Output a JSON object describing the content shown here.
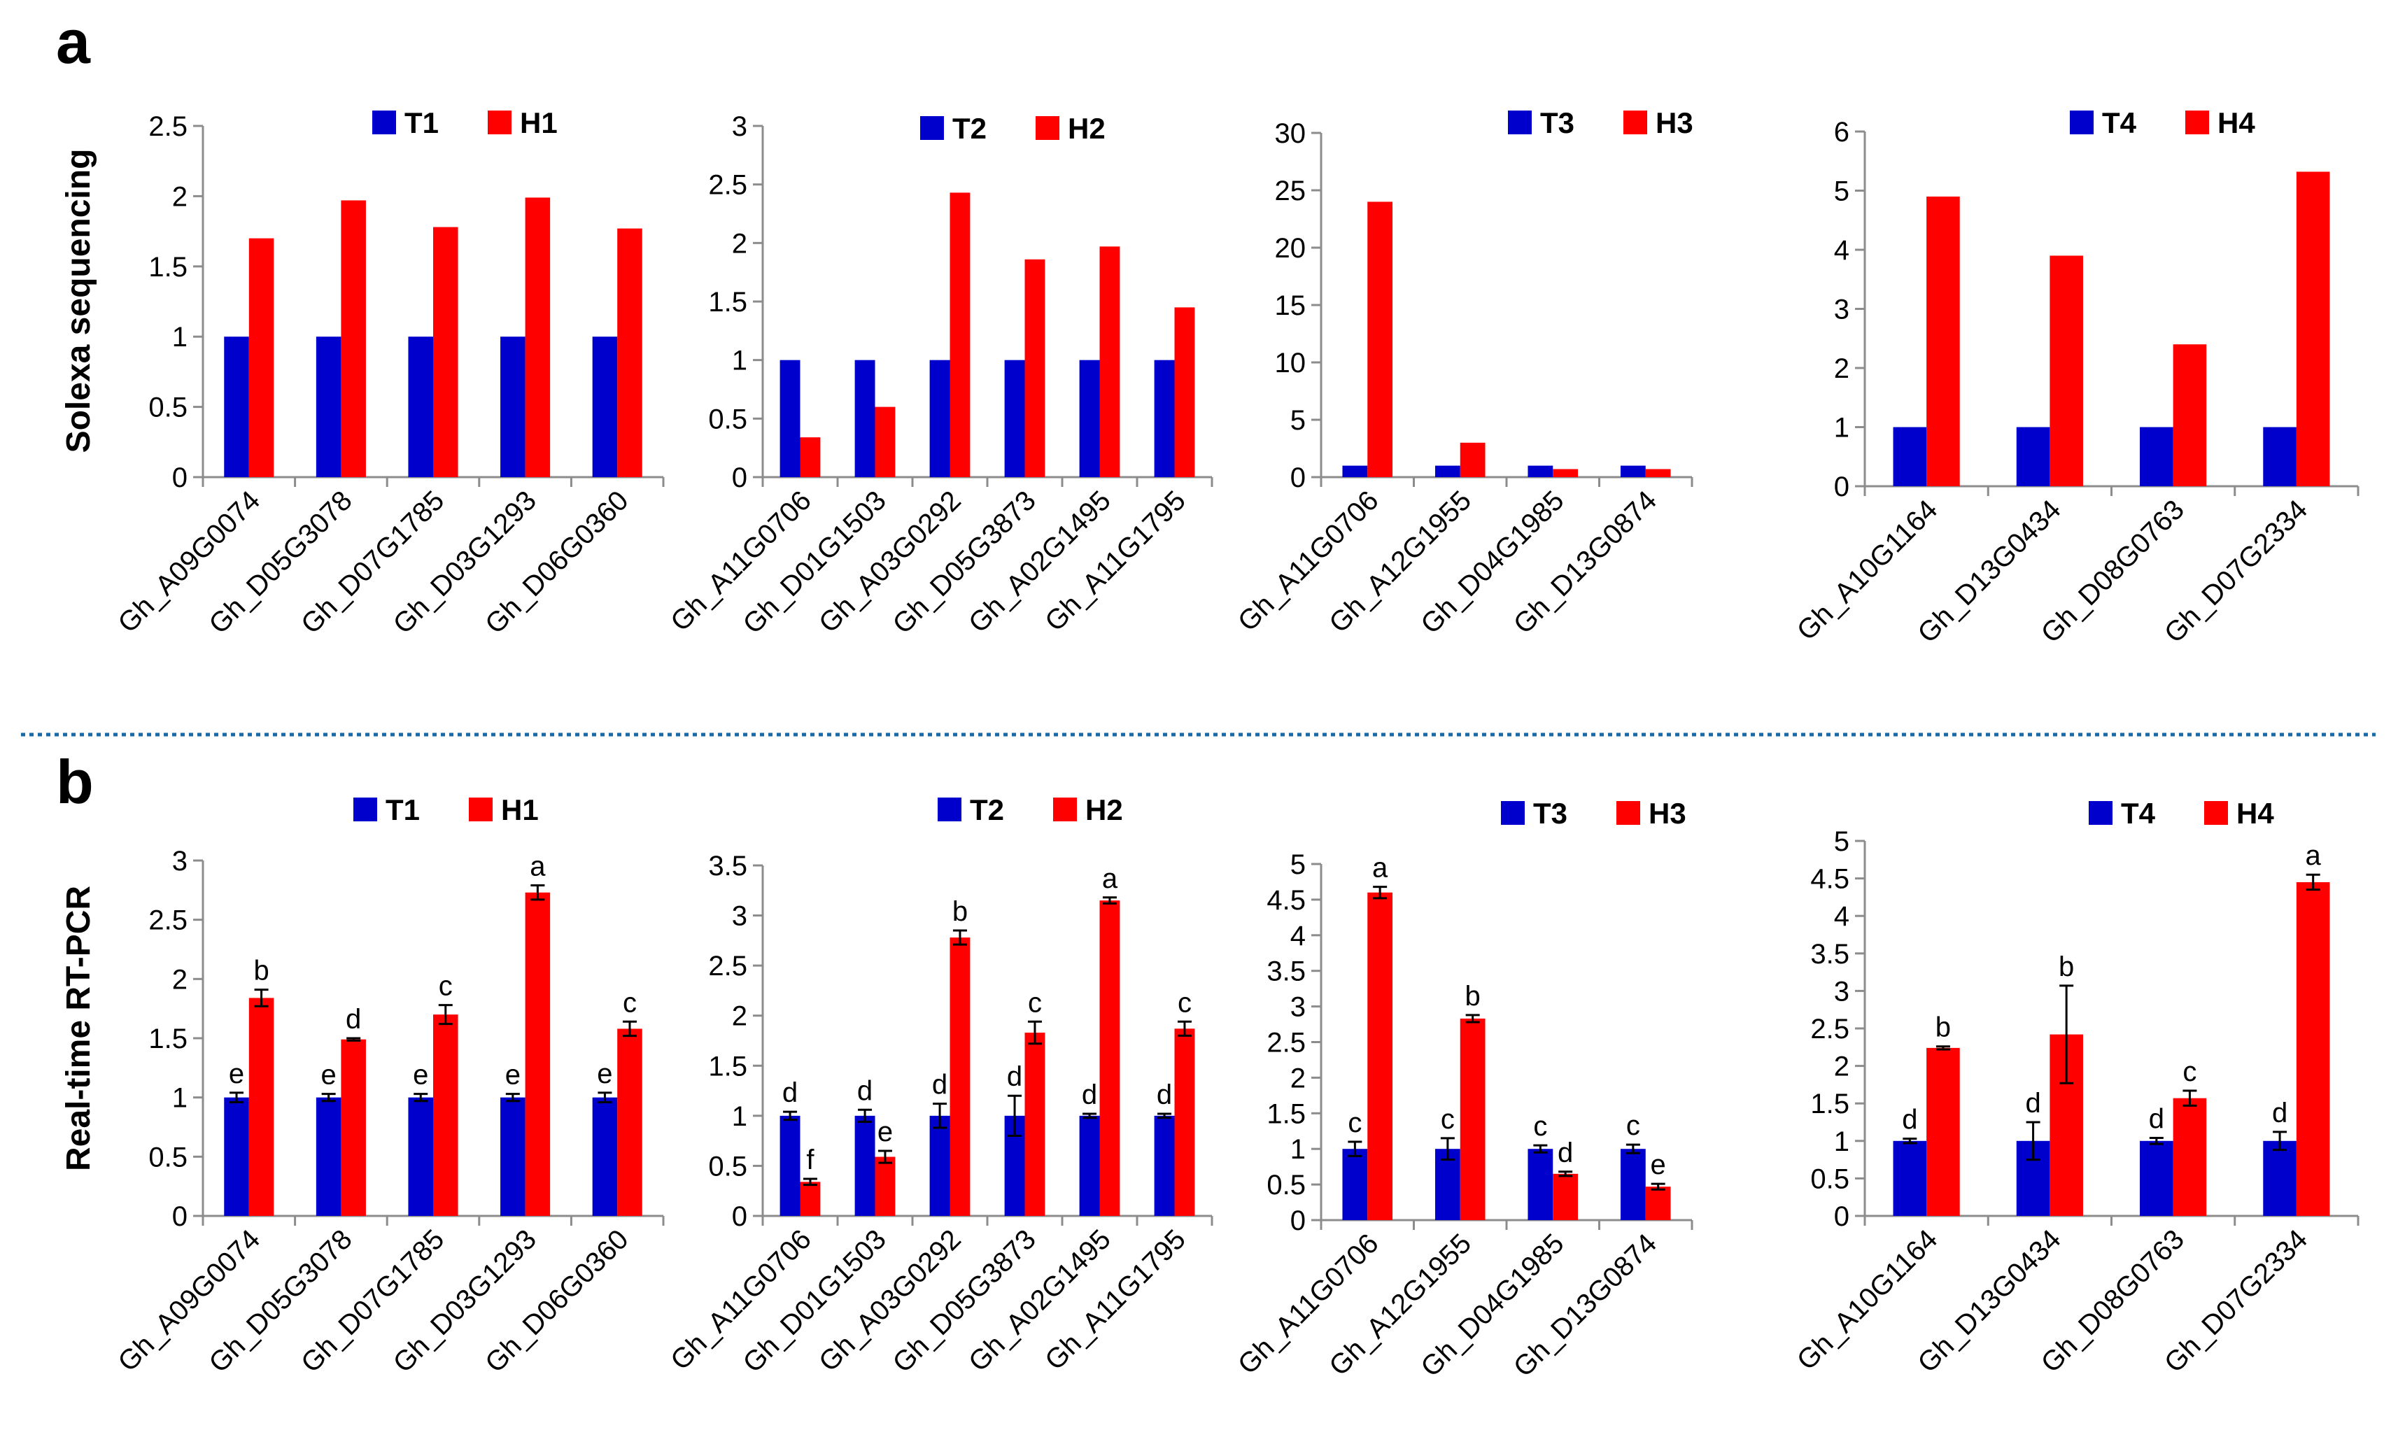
{
  "figure": {
    "panel_a_label": "a",
    "panel_b_label": "b",
    "row_a_ylabel": "Solexa sequencing",
    "row_b_ylabel": "Real-time RT-PCR"
  },
  "colors": {
    "T": "#0000cc",
    "H": "#ff0000",
    "separator": "#1a6aa6"
  },
  "chart_data": [
    {
      "id": "a1",
      "row": "a",
      "type": "bar",
      "ylabel": "Solexa sequencing",
      "categories": [
        "Gh_A09G0074",
        "Gh_D05G3078",
        "Gh_D07G1785",
        "Gh_D03G1293",
        "Gh_D06G0360"
      ],
      "series": [
        {
          "name": "T1",
          "values": [
            1,
            1,
            1,
            1,
            1
          ]
        },
        {
          "name": "H1",
          "values": [
            1.7,
            1.97,
            1.78,
            1.99,
            1.77
          ]
        }
      ],
      "ylim": [
        0,
        2.5
      ],
      "yticks": [
        "0",
        "0.5",
        "1",
        "1.5",
        "2",
        "2.5"
      ]
    },
    {
      "id": "a2",
      "row": "a",
      "type": "bar",
      "categories": [
        "Gh_A11G0706",
        "Gh_D01G1503",
        "Gh_A03G0292",
        "Gh_D05G3873",
        "Gh_A02G1495",
        "Gh_A11G1795"
      ],
      "series": [
        {
          "name": "T2",
          "values": [
            1,
            1,
            1,
            1,
            1,
            1
          ]
        },
        {
          "name": "H2",
          "values": [
            0.34,
            0.6,
            2.43,
            1.86,
            1.97,
            1.45
          ]
        }
      ],
      "ylim": [
        0,
        3
      ],
      "yticks": [
        "0",
        "0.5",
        "1",
        "1.5",
        "2",
        "2.5",
        "3"
      ]
    },
    {
      "id": "a3",
      "row": "a",
      "type": "bar",
      "categories": [
        "Gh_A11G0706",
        "Gh_A12G1955",
        "Gh_D04G1985",
        "Gh_D13G0874"
      ],
      "series": [
        {
          "name": "T3",
          "values": [
            1,
            1,
            1,
            1
          ]
        },
        {
          "name": "H3",
          "values": [
            24,
            3,
            0.7,
            0.7
          ]
        }
      ],
      "ylim": [
        0,
        30
      ],
      "yticks": [
        "0",
        "5",
        "10",
        "15",
        "20",
        "25",
        "30"
      ]
    },
    {
      "id": "a4",
      "row": "a",
      "type": "bar",
      "categories": [
        "Gh_A10G1164",
        "Gh_D13G0434",
        "Gh_D08G0763",
        "Gh_D07G2334"
      ],
      "series": [
        {
          "name": "T4",
          "values": [
            1,
            1,
            1,
            1
          ]
        },
        {
          "name": "H4",
          "values": [
            4.9,
            3.9,
            2.4,
            5.32
          ]
        }
      ],
      "ylim": [
        0,
        6
      ],
      "yticks": [
        "0",
        "1",
        "2",
        "3",
        "4",
        "5",
        "6"
      ]
    },
    {
      "id": "b1",
      "row": "b",
      "type": "bar",
      "ylabel": "Real-time RT-PCR",
      "categories": [
        "Gh_A09G0074",
        "Gh_D05G3078",
        "Gh_D07G1785",
        "Gh_D03G1293",
        "Gh_D06G0360"
      ],
      "series": [
        {
          "name": "T1",
          "values": [
            1,
            1,
            1,
            1,
            1
          ],
          "errors": [
            0.04,
            0.03,
            0.03,
            0.03,
            0.04
          ],
          "labels": [
            "e",
            "e",
            "e",
            "e",
            "e"
          ]
        },
        {
          "name": "H1",
          "values": [
            1.84,
            1.49,
            1.7,
            2.73,
            1.58
          ],
          "errors": [
            0.07,
            0.01,
            0.08,
            0.06,
            0.06
          ],
          "labels": [
            "b",
            "d",
            "c",
            "a",
            "c"
          ]
        }
      ],
      "ylim": [
        0,
        3
      ],
      "yticks": [
        "0",
        "0.5",
        "1",
        "1.5",
        "2",
        "2.5",
        "3"
      ]
    },
    {
      "id": "b2",
      "row": "b",
      "type": "bar",
      "categories": [
        "Gh_A11G0706",
        "Gh_D01G1503",
        "Gh_A03G0292",
        "Gh_D05G3873",
        "Gh_A02G1495",
        "Gh_A11G1795"
      ],
      "series": [
        {
          "name": "T2",
          "values": [
            1,
            1,
            1,
            1,
            1,
            1
          ],
          "errors": [
            0.04,
            0.06,
            0.12,
            0.2,
            0.02,
            0.02
          ],
          "labels": [
            "d",
            "d",
            "d",
            "d",
            "d",
            "d"
          ]
        },
        {
          "name": "H2",
          "values": [
            0.34,
            0.59,
            2.78,
            1.83,
            3.15,
            1.87
          ],
          "errors": [
            0.03,
            0.06,
            0.07,
            0.11,
            0.03,
            0.07
          ],
          "labels": [
            "f",
            "e",
            "b",
            "c",
            "a",
            "c"
          ]
        }
      ],
      "ylim": [
        0,
        3.5
      ],
      "yticks": [
        "0",
        "0.5",
        "1",
        "1.5",
        "2",
        "2.5",
        "3",
        "3.5"
      ]
    },
    {
      "id": "b3",
      "row": "b",
      "type": "bar",
      "categories": [
        "Gh_A11G0706",
        "Gh_A12G1955",
        "Gh_D04G1985",
        "Gh_D13G0874"
      ],
      "series": [
        {
          "name": "T3",
          "values": [
            1,
            1,
            1,
            1
          ],
          "errors": [
            0.1,
            0.15,
            0.05,
            0.06
          ],
          "labels": [
            "c",
            "c",
            "c",
            "c"
          ]
        },
        {
          "name": "H3",
          "values": [
            4.6,
            2.83,
            0.65,
            0.47
          ],
          "errors": [
            0.08,
            0.05,
            0.03,
            0.04
          ],
          "labels": [
            "a",
            "b",
            "d",
            "e"
          ]
        }
      ],
      "ylim": [
        0,
        5
      ],
      "yticks": [
        "0",
        "0.5",
        "1",
        "1.5",
        "2",
        "2.5",
        "3",
        "3.5",
        "4",
        "4.5",
        "5"
      ]
    },
    {
      "id": "b4",
      "row": "b",
      "type": "bar",
      "categories": [
        "Gh_A10G1164",
        "Gh_D13G0434",
        "Gh_D08G0763",
        "Gh_D07G2334"
      ],
      "series": [
        {
          "name": "T4",
          "values": [
            1,
            1,
            1,
            1
          ],
          "errors": [
            0.03,
            0.25,
            0.04,
            0.12
          ],
          "labels": [
            "d",
            "d",
            "d",
            "d"
          ]
        },
        {
          "name": "H4",
          "values": [
            2.24,
            2.42,
            1.57,
            4.45
          ],
          "errors": [
            0.02,
            0.65,
            0.1,
            0.1
          ],
          "labels": [
            "b",
            "b",
            "c",
            "a"
          ]
        }
      ],
      "ylim": [
        0,
        5
      ],
      "yticks": [
        "0",
        "0.5",
        "1",
        "1.5",
        "2",
        "2.5",
        "3",
        "3.5",
        "4",
        "4.5",
        "5"
      ]
    }
  ]
}
